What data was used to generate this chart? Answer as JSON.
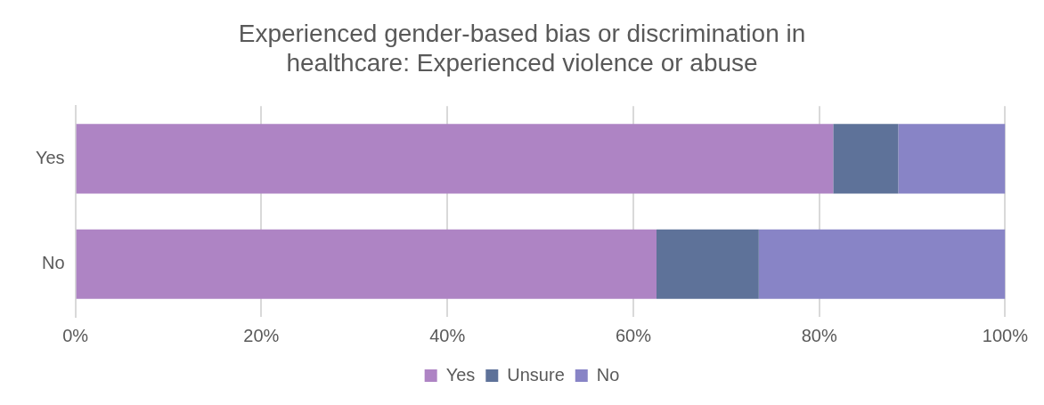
{
  "chart_data": {
    "type": "bar",
    "orientation": "horizontal",
    "stacked": true,
    "title": [
      "Experienced gender-based bias or discrimination in",
      "healthcare: Experienced violence or abuse"
    ],
    "categories": [
      "Yes",
      "No"
    ],
    "series": [
      {
        "name": "Yes",
        "color": "#ae84c4",
        "values": [
          81.5,
          62.5
        ]
      },
      {
        "name": "Unsure",
        "color": "#5e7299",
        "values": [
          7,
          11
        ]
      },
      {
        "name": "No",
        "color": "#8884c6",
        "values": [
          11.5,
          26.5
        ]
      }
    ],
    "xlim": [
      0,
      100
    ],
    "xticks": [
      {
        "value": 0,
        "label": "0%"
      },
      {
        "value": 20,
        "label": "20%"
      },
      {
        "value": 40,
        "label": "40%"
      },
      {
        "value": 60,
        "label": "60%"
      },
      {
        "value": 80,
        "label": "80%"
      },
      {
        "value": 100,
        "label": "100%"
      }
    ],
    "grid": "x",
    "legend": "bottom"
  }
}
